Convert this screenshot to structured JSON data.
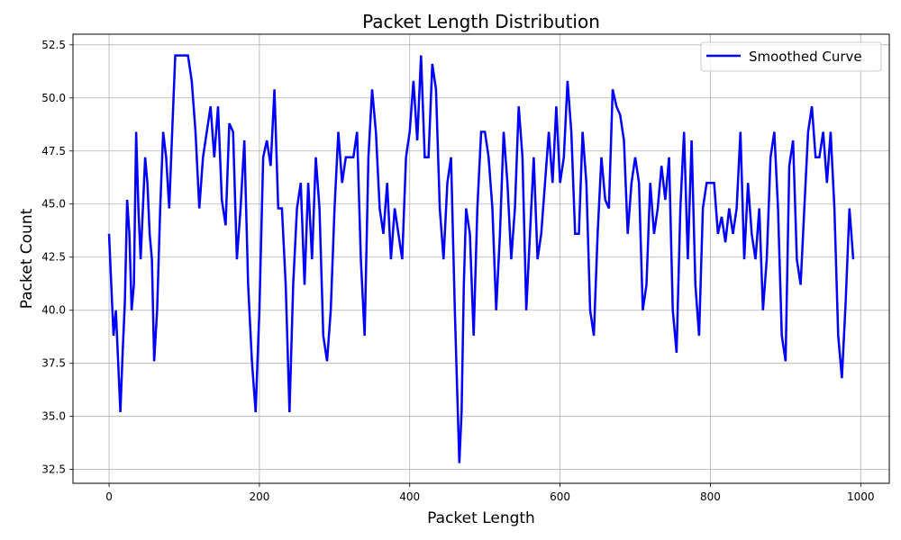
{
  "chart_data": {
    "type": "line",
    "title": "Packet Length Distribution",
    "xlabel": "Packet Length",
    "ylabel": "Packet Count",
    "xlim": [
      -48,
      1038
    ],
    "ylim": [
      31.85,
      53.0
    ],
    "x_ticks": [
      0,
      200,
      400,
      600,
      800,
      1000
    ],
    "x_tick_labels": [
      "0",
      "200",
      "400",
      "600",
      "800",
      "1000"
    ],
    "y_ticks": [
      32.5,
      35.0,
      37.5,
      40.0,
      42.5,
      45.0,
      47.5,
      50.0,
      52.5
    ],
    "y_tick_labels": [
      "32.5",
      "35.0",
      "37.5",
      "40.0",
      "42.5",
      "45.0",
      "47.5",
      "50.0",
      "52.5"
    ],
    "grid": true,
    "legend_position": "top-right",
    "series": [
      {
        "name": "Smoothed Curve",
        "color": "#0000ff",
        "x": [
          0,
          3,
          6,
          9,
          12,
          15,
          18,
          21,
          24,
          27,
          30,
          33,
          36,
          39,
          42,
          45,
          48,
          51,
          54,
          57,
          60,
          64,
          68,
          72,
          76,
          80,
          84,
          88,
          92,
          96,
          100,
          105,
          110,
          115,
          120,
          125,
          130,
          135,
          140,
          145,
          150,
          155,
          160,
          165,
          170,
          175,
          180,
          185,
          190,
          195,
          200,
          205,
          210,
          215,
          220,
          225,
          230,
          235,
          240,
          245,
          250,
          255,
          260,
          265,
          270,
          275,
          280,
          285,
          290,
          295,
          300,
          305,
          310,
          315,
          320,
          325,
          330,
          335,
          340,
          345,
          350,
          355,
          360,
          365,
          370,
          375,
          380,
          385,
          390,
          395,
          400,
          405,
          410,
          415,
          420,
          425,
          430,
          435,
          440,
          445,
          450,
          455,
          460,
          463,
          466,
          469,
          472,
          475,
          480,
          485,
          490,
          495,
          500,
          505,
          510,
          515,
          520,
          525,
          530,
          535,
          540,
          545,
          550,
          555,
          560,
          565,
          570,
          575,
          580,
          585,
          590,
          595,
          600,
          605,
          610,
          615,
          620,
          625,
          630,
          635,
          640,
          645,
          650,
          655,
          660,
          665,
          670,
          675,
          680,
          685,
          690,
          695,
          700,
          705,
          710,
          715,
          720,
          725,
          730,
          735,
          740,
          745,
          750,
          755,
          760,
          765,
          770,
          775,
          780,
          785,
          790,
          795,
          800,
          805,
          810,
          815,
          820,
          825,
          830,
          835,
          840,
          845,
          850,
          855,
          860,
          865,
          870,
          875,
          880,
          885,
          890,
          895,
          900,
          905,
          910,
          915,
          920,
          925,
          930,
          935,
          940,
          945,
          950,
          955,
          960,
          965,
          970,
          975,
          980,
          985,
          990
        ],
        "values": [
          43.6,
          41.2,
          38.8,
          40.0,
          37.6,
          35.2,
          38.0,
          40.4,
          45.2,
          43.6,
          40.0,
          41.2,
          48.4,
          44.8,
          42.4,
          44.8,
          47.2,
          46.0,
          43.6,
          42.4,
          37.6,
          40.0,
          44.8,
          48.4,
          47.2,
          44.8,
          48.4,
          52.0,
          52.0,
          52.0,
          52.0,
          52.0,
          50.8,
          48.4,
          44.8,
          47.2,
          48.4,
          49.6,
          47.2,
          49.6,
          45.2,
          44.0,
          48.8,
          48.4,
          42.4,
          44.8,
          48.0,
          41.2,
          37.6,
          35.2,
          40.0,
          47.2,
          48.0,
          46.8,
          50.4,
          44.8,
          44.8,
          41.2,
          35.2,
          41.2,
          44.8,
          46.0,
          41.2,
          46.0,
          42.4,
          47.2,
          44.8,
          38.8,
          37.6,
          40.0,
          44.8,
          48.4,
          46.0,
          47.2,
          47.2,
          47.2,
          48.4,
          42.4,
          38.8,
          47.2,
          50.4,
          48.4,
          44.8,
          43.6,
          46.0,
          42.4,
          44.8,
          43.6,
          42.4,
          47.2,
          48.4,
          50.8,
          48.0,
          52.0,
          47.2,
          47.2,
          51.6,
          50.4,
          44.8,
          42.4,
          46.0,
          47.2,
          40.0,
          36.4,
          32.8,
          35.2,
          41.2,
          44.8,
          43.6,
          38.8,
          44.8,
          48.4,
          48.4,
          47.2,
          44.8,
          40.0,
          43.6,
          48.4,
          46.0,
          42.4,
          44.8,
          49.6,
          47.2,
          40.0,
          43.6,
          47.2,
          42.4,
          43.6,
          46.0,
          48.4,
          46.0,
          49.6,
          46.0,
          47.2,
          50.8,
          48.4,
          43.6,
          43.6,
          48.4,
          46.0,
          40.0,
          38.8,
          43.6,
          47.2,
          45.2,
          44.8,
          50.4,
          49.6,
          49.2,
          48.0,
          43.6,
          46.0,
          47.2,
          46.0,
          40.0,
          41.2,
          46.0,
          43.6,
          44.8,
          46.8,
          45.2,
          47.2,
          40.0,
          38.0,
          44.8,
          48.4,
          42.4,
          48.0,
          41.2,
          38.8,
          44.8,
          46.0,
          46.0,
          46.0,
          43.6,
          44.4,
          43.2,
          44.8,
          43.6,
          44.8,
          48.4,
          42.4,
          46.0,
          43.6,
          42.4,
          44.8,
          40.0,
          42.4,
          47.2,
          48.4,
          44.8,
          38.8,
          37.6,
          46.8,
          48.0,
          42.4,
          41.2,
          44.8,
          48.4,
          49.6,
          47.2,
          47.2,
          48.4,
          46.0,
          48.4,
          44.8,
          38.8,
          36.8,
          40.4,
          44.8,
          42.4
        ]
      }
    ]
  }
}
